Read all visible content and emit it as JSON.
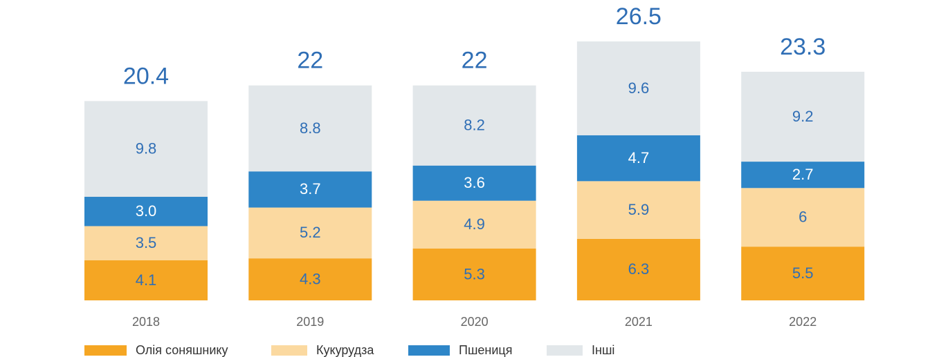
{
  "chart_data": {
    "type": "stacked_bar",
    "categories": [
      "2018",
      "2019",
      "2020",
      "2021",
      "2022"
    ],
    "series": [
      {
        "name": "Олія соняшнику",
        "color": "#f5a623",
        "values": [
          4.1,
          4.3,
          5.3,
          6.3,
          5.5
        ]
      },
      {
        "name": "Кукурудза",
        "color": "#fbd9a0",
        "values": [
          3.5,
          5.2,
          4.9,
          5.9,
          6
        ]
      },
      {
        "name": "Пшениця",
        "color": "#2e86c8",
        "values": [
          3,
          3.7,
          3.6,
          4.7,
          2.7
        ],
        "value_labels": [
          "3.0",
          "3.7",
          "3.6",
          "4.7",
          "2.7"
        ]
      },
      {
        "name": "Інші",
        "color": "#e2e7ea",
        "values": [
          9.8,
          8.8,
          8.2,
          9.6,
          9.2
        ]
      }
    ],
    "totals": [
      20.4,
      22,
      22,
      26.5,
      23.3
    ]
  }
}
